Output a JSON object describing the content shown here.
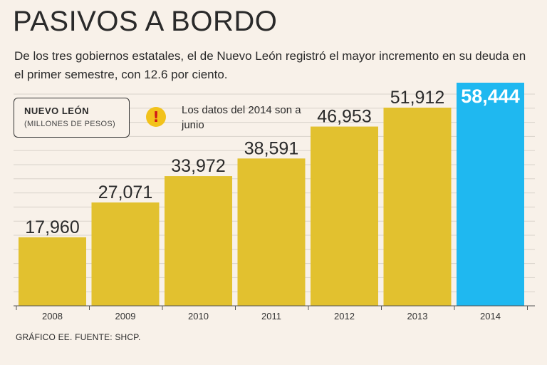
{
  "header": {
    "title": "PASIVOS A BORDO",
    "subtitle": "De los tres gobiernos estatales, el de Nuevo León registró el mayor incremento en su deuda en el primer semestre, con 12.6 por ciento."
  },
  "legend": {
    "title": "NUEVO LEÓN",
    "unit": "(MILLONES DE PESOS)"
  },
  "note": {
    "icon": "exclamation-warning-icon",
    "text": "Los datos del 2014 son a junio"
  },
  "footer": {
    "source": "GRÁFICO EE. FUENTE: SHCP."
  },
  "colors": {
    "background": "#f8f1e9",
    "bar": "#e2c12f",
    "highlight_bar": "#1fb8f0",
    "warning": "#f2c21b"
  },
  "chart_data": {
    "type": "bar",
    "categories": [
      "2008",
      "2009",
      "2010",
      "2011",
      "2012",
      "2013",
      "2014"
    ],
    "values": [
      17960,
      27071,
      33972,
      38591,
      46953,
      51912,
      58444
    ],
    "value_labels": [
      "17,960",
      "27,071",
      "33,972",
      "38,591",
      "46,953",
      "51,912",
      "58,444"
    ],
    "highlight_category": "2014",
    "ylim": [
      0,
      58444
    ],
    "grid": true
  }
}
